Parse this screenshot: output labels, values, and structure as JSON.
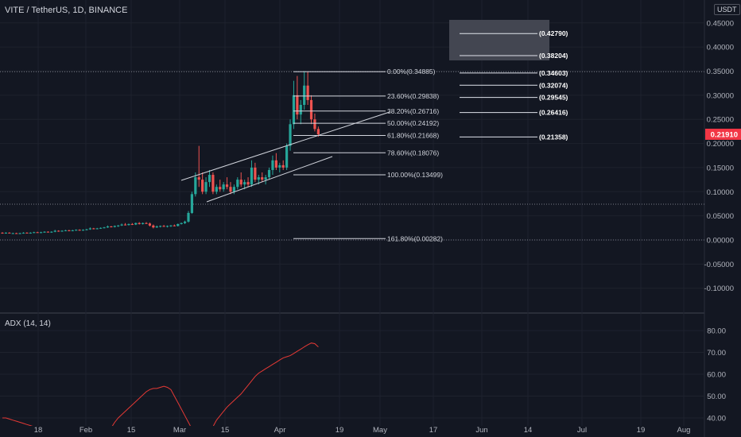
{
  "header": {
    "title": "VITE / TetherUS, 1D, BINANCE",
    "unit": "USDT"
  },
  "indicator": {
    "title": "ADX (14, 14)"
  },
  "colors": {
    "bg": "#131722",
    "up": "#26a69a",
    "down": "#ef5350",
    "grid": "#1e222d",
    "adx": "#e53935",
    "fib": "#d1d4dc",
    "price_badge": "#f23645"
  },
  "chart_data": {
    "type": "candlestick",
    "price_axis": {
      "ticks": [
        "0.45000",
        "0.40000",
        "0.35000",
        "0.30000",
        "0.25000",
        "0.20000",
        "0.15000",
        "0.10000",
        "0.05000",
        "0.00000",
        "-0.05000",
        "-0.10000"
      ]
    },
    "last_price": "0.21910",
    "x_ticks": [
      "18",
      "Feb",
      "15",
      "Mar",
      "15",
      "Apr",
      "19",
      "May",
      "17",
      "Jun",
      "14",
      "Jul",
      "19",
      "Aug"
    ],
    "fib_levels": [
      {
        "label": "0.00%(0.34885)",
        "value": 0.34885
      },
      {
        "label": "23.60%(0.29838)",
        "value": 0.29838
      },
      {
        "label": "38.20%(0.26716)",
        "value": 0.26716
      },
      {
        "label": "50.00%(0.24192)",
        "value": 0.24192
      },
      {
        "label": "61.80%(0.21668)",
        "value": 0.21668
      },
      {
        "label": "78.60%(0.18076)",
        "value": 0.18076
      },
      {
        "label": "100.00%(0.13499)",
        "value": 0.13499
      },
      {
        "label": "161.80%(0.00282)",
        "value": 0.00282
      }
    ],
    "fib_extensions": [
      {
        "label": "(0.42790)",
        "value": 0.4279
      },
      {
        "label": "(0.38204)",
        "value": 0.38204
      },
      {
        "label": "(0.34603)",
        "value": 0.34603
      },
      {
        "label": "(0.32074)",
        "value": 0.32074
      },
      {
        "label": "(0.29545)",
        "value": 0.29545
      },
      {
        "label": "(0.26416)",
        "value": 0.26416
      },
      {
        "label": "(0.21358)",
        "value": 0.21358
      }
    ],
    "candles": [
      [
        0.015,
        0.016,
        0.013,
        0.014
      ],
      [
        0.014,
        0.016,
        0.013,
        0.015
      ],
      [
        0.015,
        0.016,
        0.014,
        0.014
      ],
      [
        0.014,
        0.015,
        0.013,
        0.014
      ],
      [
        0.014,
        0.015,
        0.013,
        0.013
      ],
      [
        0.013,
        0.015,
        0.012,
        0.014
      ],
      [
        0.014,
        0.016,
        0.013,
        0.015
      ],
      [
        0.015,
        0.016,
        0.014,
        0.014
      ],
      [
        0.014,
        0.016,
        0.013,
        0.015
      ],
      [
        0.015,
        0.017,
        0.014,
        0.016
      ],
      [
        0.016,
        0.017,
        0.015,
        0.015
      ],
      [
        0.015,
        0.017,
        0.014,
        0.016
      ],
      [
        0.016,
        0.018,
        0.015,
        0.017
      ],
      [
        0.017,
        0.018,
        0.016,
        0.016
      ],
      [
        0.016,
        0.018,
        0.015,
        0.017
      ],
      [
        0.017,
        0.021,
        0.016,
        0.019
      ],
      [
        0.019,
        0.02,
        0.017,
        0.018
      ],
      [
        0.018,
        0.02,
        0.017,
        0.019
      ],
      [
        0.019,
        0.021,
        0.018,
        0.02
      ],
      [
        0.02,
        0.021,
        0.018,
        0.019
      ],
      [
        0.019,
        0.021,
        0.018,
        0.02
      ],
      [
        0.02,
        0.022,
        0.019,
        0.021
      ],
      [
        0.021,
        0.022,
        0.019,
        0.02
      ],
      [
        0.02,
        0.022,
        0.019,
        0.021
      ],
      [
        0.021,
        0.023,
        0.02,
        0.022
      ],
      [
        0.022,
        0.026,
        0.021,
        0.024
      ],
      [
        0.024,
        0.025,
        0.022,
        0.023
      ],
      [
        0.023,
        0.025,
        0.022,
        0.024
      ],
      [
        0.024,
        0.026,
        0.023,
        0.025
      ],
      [
        0.025,
        0.027,
        0.024,
        0.026
      ],
      [
        0.026,
        0.03,
        0.025,
        0.028
      ],
      [
        0.028,
        0.029,
        0.026,
        0.027
      ],
      [
        0.027,
        0.03,
        0.026,
        0.029
      ],
      [
        0.029,
        0.031,
        0.027,
        0.03
      ],
      [
        0.03,
        0.034,
        0.029,
        0.032
      ],
      [
        0.032,
        0.035,
        0.03,
        0.031
      ],
      [
        0.031,
        0.034,
        0.03,
        0.033
      ],
      [
        0.033,
        0.035,
        0.031,
        0.032
      ],
      [
        0.032,
        0.036,
        0.031,
        0.035
      ],
      [
        0.035,
        0.037,
        0.032,
        0.033
      ],
      [
        0.033,
        0.036,
        0.032,
        0.035
      ],
      [
        0.035,
        0.037,
        0.033,
        0.034
      ],
      [
        0.034,
        0.036,
        0.028,
        0.03
      ],
      [
        0.03,
        0.032,
        0.024,
        0.026
      ],
      [
        0.026,
        0.03,
        0.025,
        0.028
      ],
      [
        0.028,
        0.03,
        0.026,
        0.029
      ],
      [
        0.029,
        0.031,
        0.027,
        0.028
      ],
      [
        0.028,
        0.03,
        0.026,
        0.029
      ],
      [
        0.029,
        0.031,
        0.027,
        0.03
      ],
      [
        0.03,
        0.032,
        0.028,
        0.029
      ],
      [
        0.029,
        0.034,
        0.028,
        0.033
      ],
      [
        0.033,
        0.036,
        0.032,
        0.035
      ],
      [
        0.035,
        0.04,
        0.033,
        0.038
      ],
      [
        0.038,
        0.06,
        0.036,
        0.056
      ],
      [
        0.056,
        0.1,
        0.054,
        0.095
      ],
      [
        0.095,
        0.14,
        0.09,
        0.13
      ],
      [
        0.13,
        0.195,
        0.11,
        0.125
      ],
      [
        0.125,
        0.14,
        0.095,
        0.1
      ],
      [
        0.1,
        0.13,
        0.095,
        0.12
      ],
      [
        0.12,
        0.145,
        0.11,
        0.135
      ],
      [
        0.135,
        0.14,
        0.095,
        0.1
      ],
      [
        0.1,
        0.115,
        0.095,
        0.11
      ],
      [
        0.11,
        0.125,
        0.1,
        0.105
      ],
      [
        0.105,
        0.12,
        0.1,
        0.115
      ],
      [
        0.115,
        0.13,
        0.105,
        0.11
      ],
      [
        0.11,
        0.12,
        0.095,
        0.1
      ],
      [
        0.1,
        0.115,
        0.095,
        0.11
      ],
      [
        0.11,
        0.13,
        0.105,
        0.125
      ],
      [
        0.125,
        0.14,
        0.11,
        0.115
      ],
      [
        0.115,
        0.125,
        0.105,
        0.12
      ],
      [
        0.12,
        0.13,
        0.11,
        0.115
      ],
      [
        0.115,
        0.165,
        0.11,
        0.15
      ],
      [
        0.15,
        0.16,
        0.12,
        0.125
      ],
      [
        0.125,
        0.135,
        0.115,
        0.13
      ],
      [
        0.13,
        0.14,
        0.12,
        0.125
      ],
      [
        0.125,
        0.135,
        0.115,
        0.13
      ],
      [
        0.13,
        0.15,
        0.125,
        0.145
      ],
      [
        0.145,
        0.175,
        0.135,
        0.165
      ],
      [
        0.165,
        0.18,
        0.145,
        0.15
      ],
      [
        0.15,
        0.16,
        0.14,
        0.155
      ],
      [
        0.155,
        0.165,
        0.145,
        0.15
      ],
      [
        0.15,
        0.2,
        0.145,
        0.195
      ],
      [
        0.195,
        0.25,
        0.185,
        0.24
      ],
      [
        0.24,
        0.33,
        0.23,
        0.3
      ],
      [
        0.3,
        0.34,
        0.25,
        0.26
      ],
      [
        0.26,
        0.29,
        0.24,
        0.28
      ],
      [
        0.28,
        0.35,
        0.27,
        0.32
      ],
      [
        0.32,
        0.349,
        0.28,
        0.29
      ],
      [
        0.29,
        0.3,
        0.24,
        0.25
      ],
      [
        0.25,
        0.262,
        0.225,
        0.23
      ],
      [
        0.23,
        0.235,
        0.214,
        0.219
      ]
    ],
    "adx": {
      "y_ticks": [
        "80.00",
        "70.00",
        "60.00",
        "50.00",
        "40.00"
      ],
      "values": [
        40.0,
        40.0,
        39.5,
        39.0,
        38.5,
        38.0,
        37.5,
        37.0,
        36.5,
        36.0,
        35.5,
        35.0,
        34.5,
        34.0,
        33.5,
        33.0,
        32.5,
        32.0,
        31.5,
        31.0,
        30.5,
        30.0,
        29.5,
        29.0,
        28.5,
        28.0,
        28.0,
        28.5,
        29.5,
        31.0,
        33.0,
        35.5,
        38.0,
        40.0,
        41.5,
        43.0,
        44.5,
        46.0,
        47.5,
        49.0,
        50.5,
        52.0,
        53.0,
        53.5,
        53.5,
        54.0,
        54.5,
        54.0,
        53.0,
        50.0,
        47.0,
        44.0,
        41.0,
        38.0,
        35.0,
        32.0,
        29.0,
        28.0,
        30.0,
        33.0,
        36.0,
        39.0,
        41.0,
        43.0,
        45.0,
        46.5,
        48.0,
        49.5,
        51.0,
        53.0,
        55.0,
        57.0,
        59.0,
        60.5,
        61.5,
        62.5,
        63.5,
        64.5,
        65.5,
        66.5,
        67.5,
        68.0,
        68.5,
        69.5,
        70.5,
        71.5,
        72.5,
        73.5,
        74.3,
        74.0,
        72.5
      ]
    }
  }
}
